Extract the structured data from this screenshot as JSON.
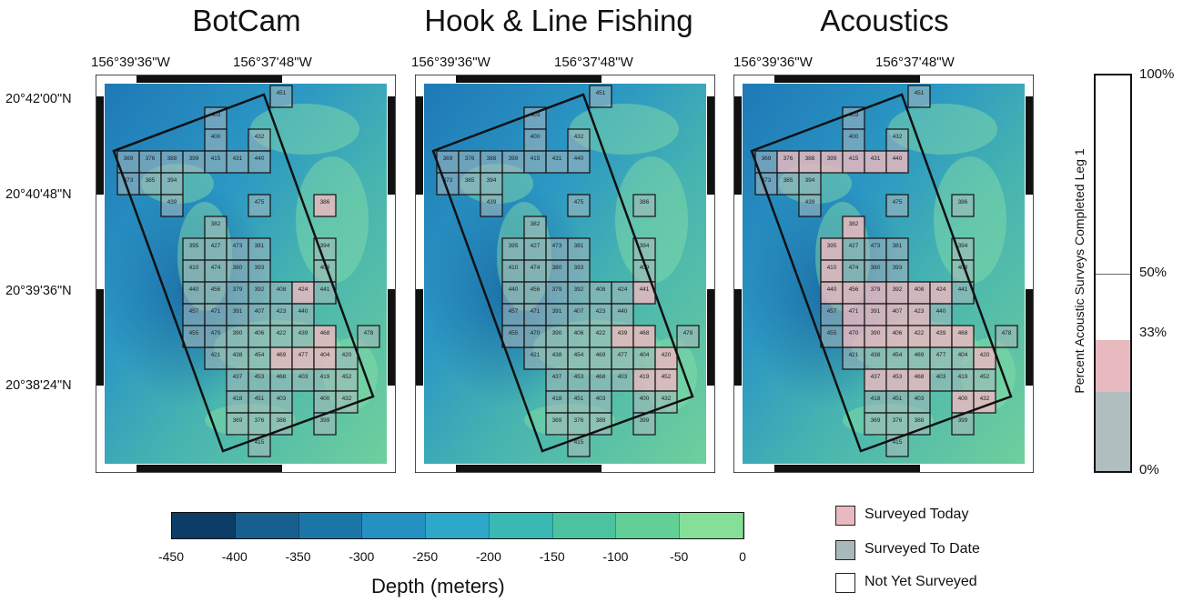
{
  "panels": [
    {
      "title": "BotCam"
    },
    {
      "title": "Hook & Line Fishing"
    },
    {
      "title": "Acoustics"
    }
  ],
  "lon_labels": [
    "156°39'36\"W",
    "156°37'48\"W"
  ],
  "lat_labels": [
    "20°42'00\"N",
    "20°40'48\"N",
    "20°39'36\"N",
    "20°38'24\"N"
  ],
  "colorbar": {
    "title": "Depth (meters)",
    "ticks": [
      "-450",
      "-400",
      "-350",
      "-300",
      "-250",
      "-200",
      "-150",
      "-100",
      "-50",
      "0"
    ],
    "colors": [
      "#0b3d66",
      "#175f8f",
      "#1d76a8",
      "#2590c2",
      "#2ea8c9",
      "#3ab8b4",
      "#4cc3a0",
      "#62cf96",
      "#86df98"
    ]
  },
  "legend": {
    "items": [
      {
        "label": "Surveyed Today",
        "color": "#e8b9bf"
      },
      {
        "label": "Surveyed To Date",
        "color": "#a9b8bb"
      },
      {
        "label": "Not Yet Surveyed",
        "color": "#ffffff"
      }
    ]
  },
  "progress": {
    "axis_label": "Percent Acoustic Surveys Completed Leg 1",
    "labels": [
      "100%",
      "50%",
      "33%",
      "0%"
    ],
    "to_date_percent": 20,
    "today_percent": 33
  }
}
